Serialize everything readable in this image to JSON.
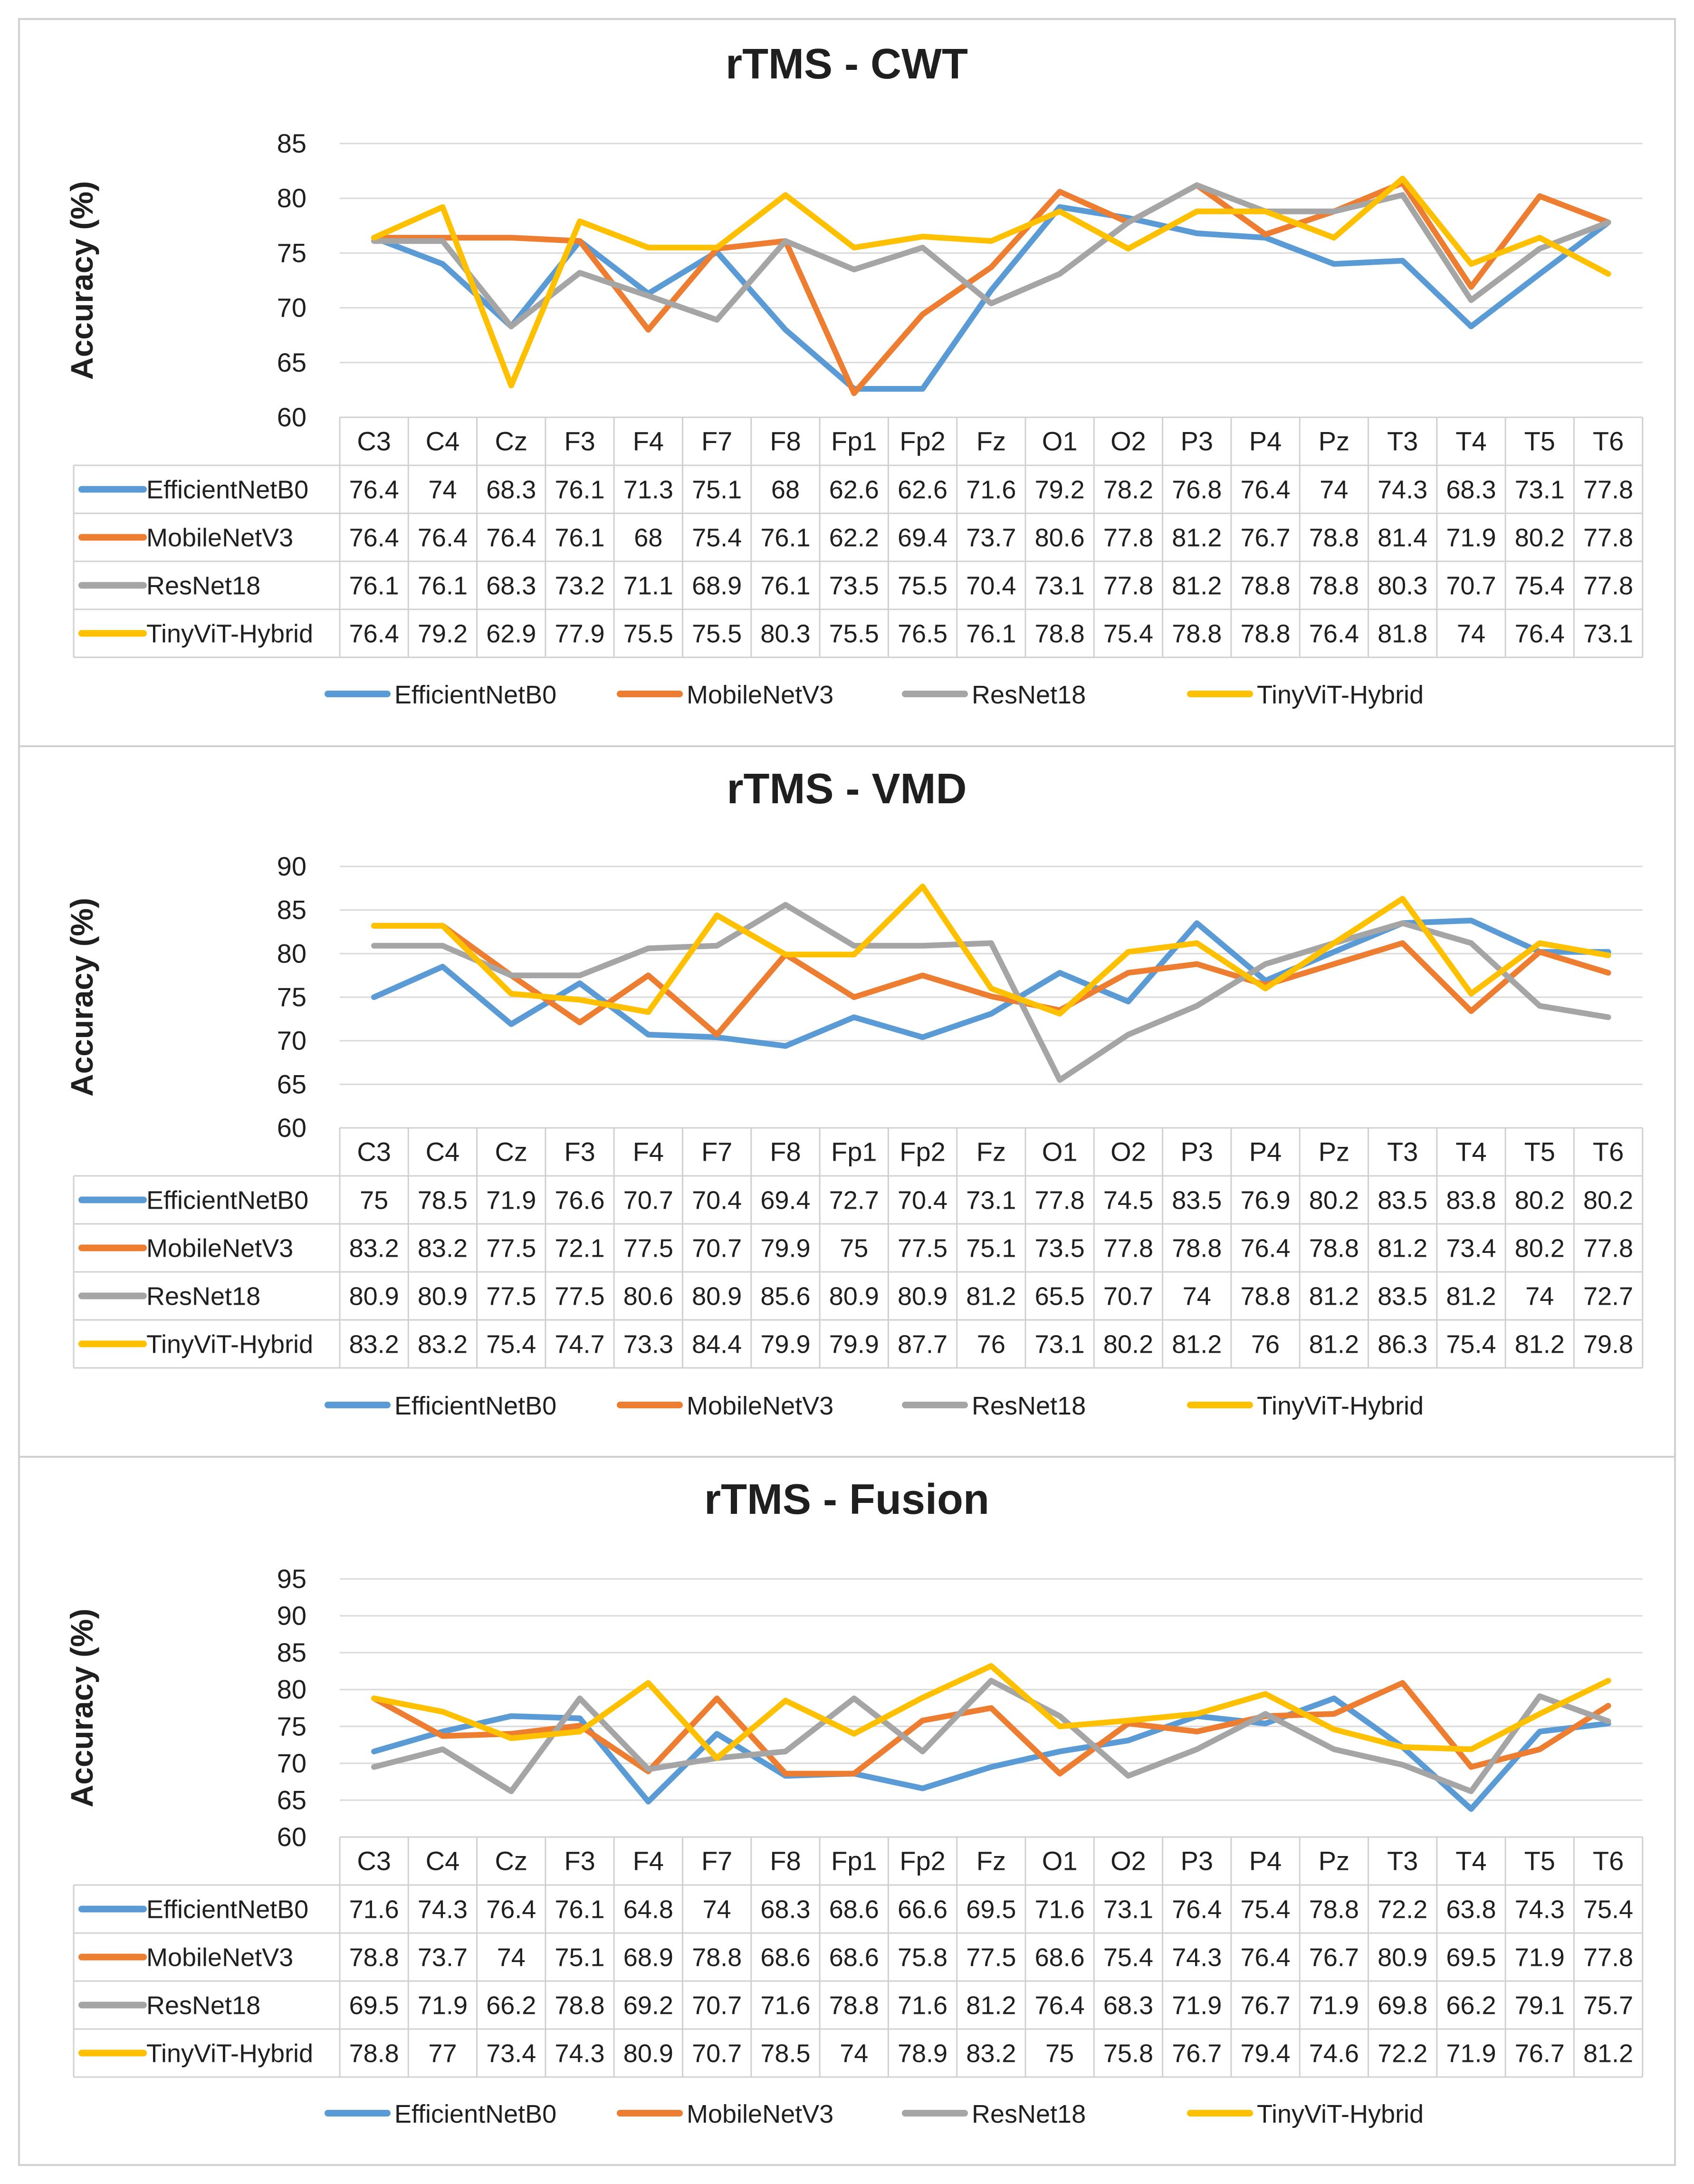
{
  "chart_data": [
    {
      "type": "line",
      "title": "rTMS - CWT",
      "ylabel": "Accuracy (%)",
      "xlabel": "",
      "ylim": [
        60,
        85
      ],
      "yticks": [
        60,
        65,
        70,
        75,
        80,
        85
      ],
      "categories": [
        "C3",
        "C4",
        "Cz",
        "F3",
        "F4",
        "F7",
        "F8",
        "Fp1",
        "Fp2",
        "Fz",
        "O1",
        "O2",
        "P3",
        "P4",
        "Pz",
        "T3",
        "T4",
        "T5",
        "T6"
      ],
      "grid": true,
      "legend": "bottom",
      "data_table": true,
      "series": [
        {
          "name": "EfficientNetB0",
          "color": "#5B9BD5",
          "values": [
            76.4,
            74,
            68.3,
            76.1,
            71.3,
            75.1,
            68,
            62.6,
            62.6,
            71.6,
            79.2,
            78.2,
            76.8,
            76.4,
            74,
            74.3,
            68.3,
            73.1,
            77.8
          ]
        },
        {
          "name": "MobileNetV3",
          "color": "#ED7D31",
          "values": [
            76.4,
            76.4,
            76.4,
            76.1,
            68,
            75.4,
            76.1,
            62.2,
            69.4,
            73.7,
            80.6,
            77.8,
            81.2,
            76.7,
            78.8,
            81.4,
            71.9,
            80.2,
            77.8
          ]
        },
        {
          "name": "ResNet18",
          "color": "#A5A5A5",
          "values": [
            76.1,
            76.1,
            68.3,
            73.2,
            71.1,
            68.9,
            76.1,
            73.5,
            75.5,
            70.4,
            73.1,
            77.8,
            81.2,
            78.8,
            78.8,
            80.3,
            70.7,
            75.4,
            77.8
          ]
        },
        {
          "name": "TinyViT-Hybrid",
          "color": "#FFC000",
          "values": [
            76.4,
            79.2,
            62.9,
            77.9,
            75.5,
            75.5,
            80.3,
            75.5,
            76.5,
            76.1,
            78.8,
            75.4,
            78.8,
            78.8,
            76.4,
            81.8,
            74,
            76.4,
            73.1
          ]
        }
      ]
    },
    {
      "type": "line",
      "title": "rTMS - VMD",
      "ylabel": "Accuracy (%)",
      "xlabel": "",
      "ylim": [
        60,
        90
      ],
      "yticks": [
        60,
        65,
        70,
        75,
        80,
        85,
        90
      ],
      "categories": [
        "C3",
        "C4",
        "Cz",
        "F3",
        "F4",
        "F7",
        "F8",
        "Fp1",
        "Fp2",
        "Fz",
        "O1",
        "O2",
        "P3",
        "P4",
        "Pz",
        "T3",
        "T4",
        "T5",
        "T6"
      ],
      "grid": true,
      "legend": "bottom",
      "data_table": true,
      "series": [
        {
          "name": "EfficientNetB0",
          "color": "#5B9BD5",
          "values": [
            75,
            78.5,
            71.9,
            76.6,
            70.7,
            70.4,
            69.4,
            72.7,
            70.4,
            73.1,
            77.8,
            74.5,
            83.5,
            76.9,
            80.2,
            83.5,
            83.8,
            80.2,
            80.2
          ]
        },
        {
          "name": "MobileNetV3",
          "color": "#ED7D31",
          "values": [
            83.2,
            83.2,
            77.5,
            72.1,
            77.5,
            70.7,
            79.9,
            75,
            77.5,
            75.1,
            73.5,
            77.8,
            78.8,
            76.4,
            78.8,
            81.2,
            73.4,
            80.2,
            77.8
          ]
        },
        {
          "name": "ResNet18",
          "color": "#A5A5A5",
          "values": [
            80.9,
            80.9,
            77.5,
            77.5,
            80.6,
            80.9,
            85.6,
            80.9,
            80.9,
            81.2,
            65.5,
            70.7,
            74,
            78.8,
            81.2,
            83.5,
            81.2,
            74,
            72.7
          ]
        },
        {
          "name": "TinyViT-Hybrid",
          "color": "#FFC000",
          "values": [
            83.2,
            83.2,
            75.4,
            74.7,
            73.3,
            84.4,
            79.9,
            79.9,
            87.7,
            76,
            73.1,
            80.2,
            81.2,
            76,
            81.2,
            86.3,
            75.4,
            81.2,
            79.8
          ]
        }
      ]
    },
    {
      "type": "line",
      "title": "rTMS - Fusion",
      "ylabel": "Accuracy (%)",
      "xlabel": "",
      "ylim": [
        60,
        95
      ],
      "yticks": [
        60,
        65,
        70,
        75,
        80,
        85,
        90,
        95
      ],
      "categories": [
        "C3",
        "C4",
        "Cz",
        "F3",
        "F4",
        "F7",
        "F8",
        "Fp1",
        "Fp2",
        "Fz",
        "O1",
        "O2",
        "P3",
        "P4",
        "Pz",
        "T3",
        "T4",
        "T5",
        "T6"
      ],
      "grid": true,
      "legend": "bottom",
      "data_table": true,
      "series": [
        {
          "name": "EfficientNetB0",
          "color": "#5B9BD5",
          "values": [
            71.6,
            74.3,
            76.4,
            76.1,
            64.8,
            74,
            68.3,
            68.6,
            66.6,
            69.5,
            71.6,
            73.1,
            76.4,
            75.4,
            78.8,
            72.2,
            63.8,
            74.3,
            75.4
          ]
        },
        {
          "name": "MobileNetV3",
          "color": "#ED7D31",
          "values": [
            78.8,
            73.7,
            74,
            75.1,
            68.9,
            78.8,
            68.6,
            68.6,
            75.8,
            77.5,
            68.6,
            75.4,
            74.3,
            76.4,
            76.7,
            80.9,
            69.5,
            71.9,
            77.8
          ]
        },
        {
          "name": "ResNet18",
          "color": "#A5A5A5",
          "values": [
            69.5,
            71.9,
            66.2,
            78.8,
            69.2,
            70.7,
            71.6,
            78.8,
            71.6,
            81.2,
            76.4,
            68.3,
            71.9,
            76.7,
            71.9,
            69.8,
            66.2,
            79.1,
            75.7
          ]
        },
        {
          "name": "TinyViT-Hybrid",
          "color": "#FFC000",
          "values": [
            78.8,
            77,
            73.4,
            74.3,
            80.9,
            70.7,
            78.5,
            74,
            78.9,
            83.2,
            75,
            75.8,
            76.7,
            79.4,
            74.6,
            72.2,
            71.9,
            76.7,
            81.2
          ]
        }
      ]
    }
  ]
}
